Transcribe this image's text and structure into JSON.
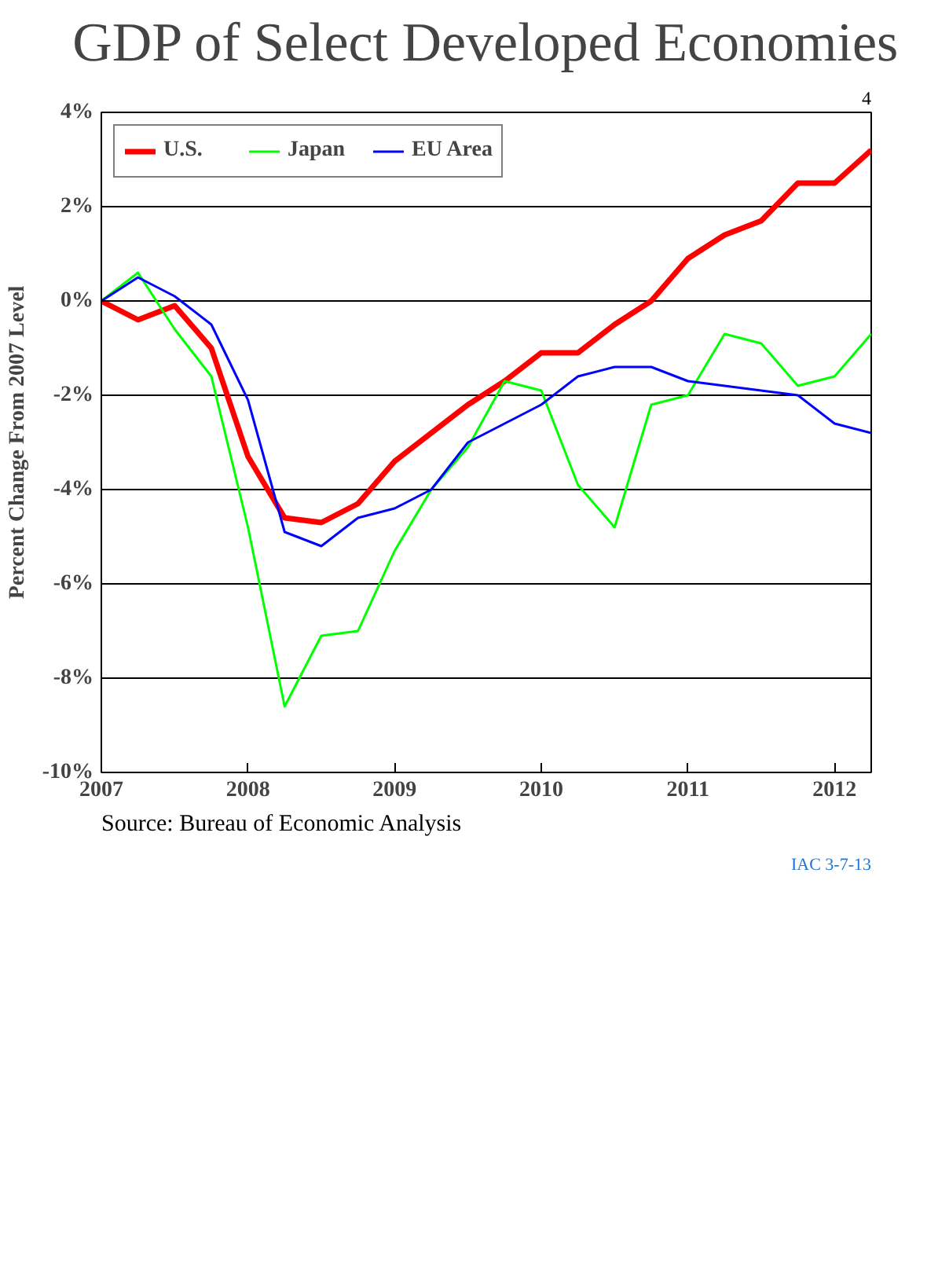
{
  "chart_data": {
    "type": "line",
    "title": "GDP of Select Developed Economies",
    "ylabel": "Percent Change From 2007 Level",
    "x": [
      2007.0,
      2007.25,
      2007.5,
      2007.75,
      2008.0,
      2008.25,
      2008.5,
      2008.75,
      2009.0,
      2009.25,
      2009.5,
      2009.75,
      2010.0,
      2010.25,
      2010.5,
      2010.75,
      2011.0,
      2011.25,
      2011.5,
      2011.75,
      2012.0,
      2012.25
    ],
    "series": [
      {
        "name": "U.S.",
        "color": "#ff0000",
        "values": [
          0.0,
          -0.4,
          -0.1,
          -1.0,
          -3.3,
          -4.6,
          -4.7,
          -4.3,
          -3.4,
          -2.8,
          -2.2,
          -1.7,
          -1.1,
          -1.1,
          -0.5,
          0.0,
          0.9,
          1.4,
          1.7,
          2.5,
          2.5,
          3.2
        ]
      },
      {
        "name": "Japan",
        "color": "#00ff00",
        "values": [
          0.0,
          0.6,
          -0.6,
          -1.6,
          -4.8,
          -8.6,
          -7.1,
          -7.0,
          -5.3,
          -4.0,
          -3.1,
          -1.7,
          -1.9,
          -3.9,
          -4.8,
          -2.2,
          -2.0,
          -0.7,
          -0.9,
          -1.8,
          -1.6,
          -0.7
        ]
      },
      {
        "name": "EU Area",
        "color": "#0000ff",
        "values": [
          0.0,
          0.5,
          0.1,
          -0.5,
          -2.1,
          -4.9,
          -5.2,
          -4.6,
          -4.4,
          -4.0,
          -3.0,
          -2.6,
          -2.2,
          -1.6,
          -1.4,
          -1.4,
          -1.7,
          -1.8,
          -1.9,
          -2.0,
          -2.6,
          -2.8
        ]
      }
    ],
    "xlim": [
      2007,
      2012.25
    ],
    "xticks": [
      2007,
      2008,
      2009,
      2010,
      2011,
      2012
    ],
    "ylim": [
      -10,
      4
    ],
    "yticks": [
      {
        "value": 4,
        "label": "4%"
      },
      {
        "value": 2,
        "label": "2%"
      },
      {
        "value": 0,
        "label": "0%"
      },
      {
        "value": -2,
        "label": "-2%"
      },
      {
        "value": -4,
        "label": "-4%"
      },
      {
        "value": -6,
        "label": "-6%"
      },
      {
        "value": -8,
        "label": "-8%"
      },
      {
        "value": -10,
        "label": "-10%"
      }
    ],
    "grid": "y",
    "legend": "top left",
    "marker": "none",
    "line_style": "solid",
    "annotations": [
      "Source:  Bureau of Economic Analysis",
      "IAC 3-7-13",
      "4"
    ]
  }
}
